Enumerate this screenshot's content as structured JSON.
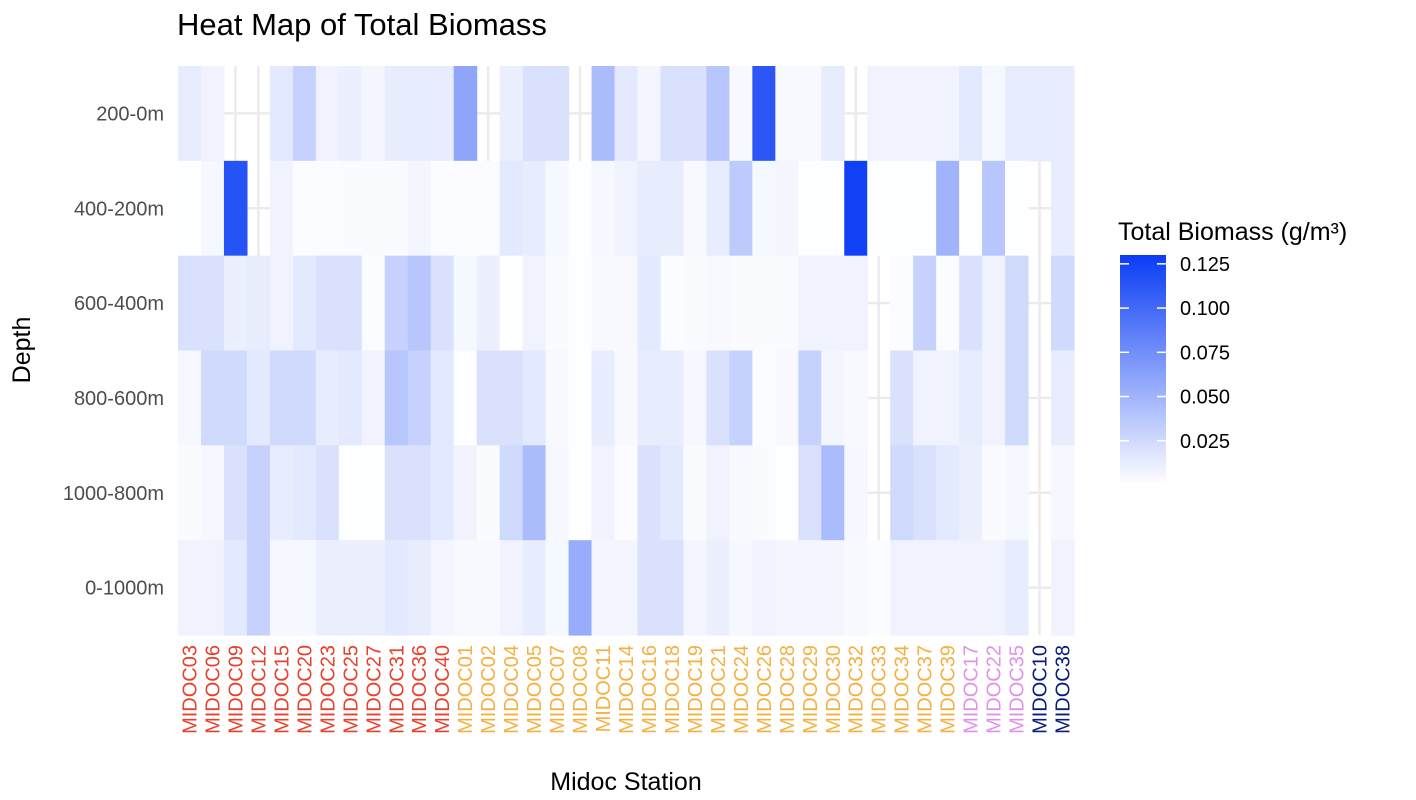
{
  "chart_data": {
    "type": "heatmap",
    "title": "Heat Map of Total Biomass",
    "xlabel": "Midoc Station",
    "ylabel": "Depth",
    "legend_title": "Total Biomass (g/m³)",
    "legend_ticks": [
      "0.125",
      "0.100",
      "0.075",
      "0.050",
      "0.025"
    ],
    "legend_tick_values": [
      0.125,
      0.1,
      0.075,
      0.05,
      0.025
    ],
    "legend_range": [
      0,
      0.13
    ],
    "legend_placement": "right",
    "grid": true,
    "colors": {
      "low": "#ffffff",
      "high": "#0a3cf5",
      "gridline": "#ebebeb"
    },
    "group_colors": {
      "red": "#e8402c",
      "orange": "#f5b041",
      "violet": "#e091e8",
      "navy": "#0b1b7a"
    },
    "rows": [
      "200-0m",
      "400-200m",
      "600-400m",
      "800-600m",
      "1000-800m",
      "0-1000m"
    ],
    "stations": [
      {
        "name": "MIDOC03",
        "group": "red"
      },
      {
        "name": "MIDOC06",
        "group": "red"
      },
      {
        "name": "MIDOC09",
        "group": "red"
      },
      {
        "name": "MIDOC12",
        "group": "red"
      },
      {
        "name": "MIDOC15",
        "group": "red"
      },
      {
        "name": "MIDOC20",
        "group": "red"
      },
      {
        "name": "MIDOC23",
        "group": "red"
      },
      {
        "name": "MIDOC25",
        "group": "red"
      },
      {
        "name": "MIDOC27",
        "group": "red"
      },
      {
        "name": "MIDOC31",
        "group": "red"
      },
      {
        "name": "MIDOC36",
        "group": "red"
      },
      {
        "name": "MIDOC40",
        "group": "red"
      },
      {
        "name": "MIDOC01",
        "group": "orange"
      },
      {
        "name": "MIDOC02",
        "group": "orange"
      },
      {
        "name": "MIDOC04",
        "group": "orange"
      },
      {
        "name": "MIDOC05",
        "group": "orange"
      },
      {
        "name": "MIDOC07",
        "group": "orange"
      },
      {
        "name": "MIDOC08",
        "group": "orange"
      },
      {
        "name": "MIDOC11",
        "group": "orange"
      },
      {
        "name": "MIDOC14",
        "group": "orange"
      },
      {
        "name": "MIDOC16",
        "group": "orange"
      },
      {
        "name": "MIDOC18",
        "group": "orange"
      },
      {
        "name": "MIDOC19",
        "group": "orange"
      },
      {
        "name": "MIDOC21",
        "group": "orange"
      },
      {
        "name": "MIDOC24",
        "group": "orange"
      },
      {
        "name": "MIDOC26",
        "group": "orange"
      },
      {
        "name": "MIDOC28",
        "group": "orange"
      },
      {
        "name": "MIDOC29",
        "group": "orange"
      },
      {
        "name": "MIDOC30",
        "group": "orange"
      },
      {
        "name": "MIDOC32",
        "group": "orange"
      },
      {
        "name": "MIDOC33",
        "group": "orange"
      },
      {
        "name": "MIDOC34",
        "group": "orange"
      },
      {
        "name": "MIDOC37",
        "group": "orange"
      },
      {
        "name": "MIDOC39",
        "group": "orange"
      },
      {
        "name": "MIDOC17",
        "group": "violet"
      },
      {
        "name": "MIDOC22",
        "group": "violet"
      },
      {
        "name": "MIDOC35",
        "group": "violet"
      },
      {
        "name": "MIDOC10",
        "group": "navy"
      },
      {
        "name": "MIDOC38",
        "group": "navy"
      }
    ],
    "values": [
      [
        0.012,
        0.008,
        null,
        null,
        0.015,
        0.03,
        0.008,
        0.01,
        0.006,
        0.012,
        0.012,
        0.012,
        0.06,
        null,
        0.01,
        0.02,
        0.02,
        null,
        0.045,
        0.015,
        0.006,
        0.02,
        0.02,
        0.038,
        0.004,
        0.112,
        0.004,
        0.004,
        0.012,
        null,
        0.008,
        0.008,
        0.008,
        0.008,
        0.015,
        0.005,
        0.012,
        0.012,
        0.012
      ],
      [
        0.001,
        0.005,
        0.115,
        null,
        0.008,
        0.002,
        0.002,
        0.003,
        0.003,
        0.003,
        0.006,
        0.002,
        0.002,
        0.002,
        0.015,
        0.012,
        0.005,
        0.001,
        0.005,
        0.008,
        0.012,
        0.012,
        0.004,
        0.012,
        0.035,
        0.005,
        0.006,
        0.001,
        0.001,
        0.127,
        0.001,
        0.001,
        0.001,
        0.05,
        0.001,
        0.038,
        0.001,
        null,
        0.012
      ],
      [
        0.02,
        0.02,
        0.01,
        0.012,
        0.008,
        0.015,
        0.02,
        0.02,
        0.002,
        0.03,
        0.038,
        0.02,
        0.005,
        0.01,
        0.001,
        0.008,
        0.003,
        0.001,
        0.004,
        0.004,
        0.015,
        0.002,
        0.003,
        0.004,
        0.003,
        0.003,
        0.003,
        0.008,
        0.008,
        0.008,
        null,
        0.002,
        0.03,
        0.002,
        0.02,
        0.008,
        0.025,
        null,
        0.025
      ],
      [
        0.005,
        0.025,
        0.025,
        0.015,
        0.025,
        0.025,
        0.012,
        0.015,
        0.008,
        0.038,
        0.03,
        0.015,
        0.001,
        0.02,
        0.02,
        0.015,
        0.004,
        0.001,
        0.012,
        0.004,
        0.012,
        0.012,
        0.005,
        0.02,
        0.03,
        0.002,
        0.004,
        0.03,
        0.006,
        0.004,
        null,
        0.02,
        0.008,
        0.008,
        0.012,
        0.008,
        0.025,
        null,
        0.012
      ],
      [
        0.003,
        0.005,
        0.02,
        0.03,
        0.012,
        0.015,
        0.02,
        0.001,
        0.001,
        0.02,
        0.02,
        0.015,
        0.008,
        0.003,
        0.025,
        0.045,
        0.005,
        0.001,
        0.008,
        0.002,
        0.02,
        0.015,
        0.003,
        0.008,
        0.004,
        0.003,
        0.001,
        0.02,
        0.045,
        0.005,
        null,
        0.025,
        0.02,
        0.015,
        0.01,
        0.003,
        0.005,
        null,
        0.005
      ],
      [
        0.008,
        0.008,
        0.015,
        0.03,
        0.005,
        0.005,
        0.01,
        0.01,
        0.01,
        0.015,
        0.012,
        0.006,
        0.004,
        0.004,
        0.008,
        0.012,
        0.005,
        0.055,
        0.006,
        0.006,
        0.02,
        0.02,
        0.006,
        0.01,
        0.005,
        0.008,
        0.006,
        0.006,
        0.006,
        0.004,
        0.002,
        0.008,
        0.008,
        0.008,
        0.008,
        0.008,
        0.012,
        null,
        0.008
      ]
    ]
  }
}
